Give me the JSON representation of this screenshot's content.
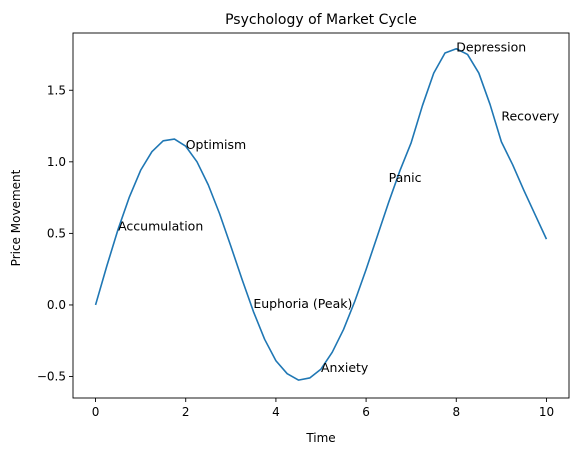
{
  "chart_data": {
    "type": "line",
    "title": "Psychology of Market Cycle",
    "xlabel": "Time",
    "ylabel": "Price Movement",
    "xlim": [
      -0.5,
      10.5
    ],
    "ylim": [
      -0.65,
      1.9
    ],
    "x_ticks": [
      0,
      2,
      4,
      6,
      8,
      10
    ],
    "x_tick_labels": [
      "0",
      "2",
      "4",
      "6",
      "8",
      "10"
    ],
    "y_ticks": [
      -0.5,
      0.0,
      0.5,
      1.0,
      1.5
    ],
    "y_tick_labels": [
      "−0.5",
      "0.0",
      "0.5",
      "1.0",
      "1.5"
    ],
    "grid": false,
    "series": [
      {
        "color": "#1f77b4",
        "x": [
          0,
          0.25,
          0.5,
          0.75,
          1.0,
          1.25,
          1.5,
          1.75,
          2.0,
          2.25,
          2.5,
          2.75,
          3.0,
          3.25,
          3.5,
          3.75,
          4.0,
          4.25,
          4.5,
          4.75,
          5.0,
          5.25,
          5.5,
          5.75,
          6.0,
          6.25,
          6.5,
          6.75,
          7.0,
          7.25,
          7.5,
          7.75,
          8.0,
          8.25,
          8.5,
          8.75,
          9.0,
          9.25,
          9.5,
          9.75,
          10.0
        ],
        "y": [
          0.0,
          0.272,
          0.529,
          0.754,
          0.941,
          1.071,
          1.147,
          1.159,
          1.109,
          1.0,
          0.839,
          0.638,
          0.411,
          0.178,
          -0.045,
          -0.24,
          -0.39,
          -0.48,
          -0.525,
          -0.51,
          -0.448,
          -0.33,
          -0.171,
          0.026,
          0.248,
          0.482,
          0.717,
          0.938,
          1.134,
          1.393,
          1.62,
          1.76,
          1.79,
          1.75,
          1.62,
          1.4,
          1.14,
          0.98,
          0.8,
          0.63,
          0.46
        ]
      }
    ],
    "annotations": [
      {
        "text": "Accumulation",
        "x": 0.5,
        "y": 0.52
      },
      {
        "text": "Optimism",
        "x": 2.0,
        "y": 1.09
      },
      {
        "text": "Euphoria (Peak)",
        "x": 3.5,
        "y": -0.02
      },
      {
        "text": "Anxiety",
        "x": 5.0,
        "y": -0.47
      },
      {
        "text": "Panic",
        "x": 6.5,
        "y": 0.86
      },
      {
        "text": "Depression",
        "x": 8.0,
        "y": 1.77
      },
      {
        "text": "Recovery",
        "x": 9.0,
        "y": 1.29
      }
    ]
  }
}
